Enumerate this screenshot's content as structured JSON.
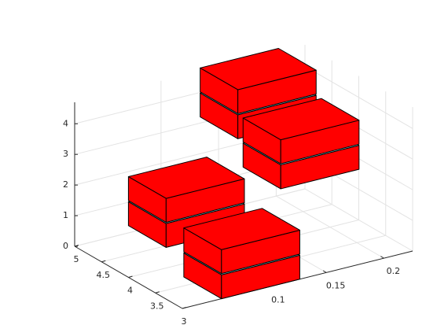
{
  "chart_data": {
    "type": "box3d",
    "color": "#ff0000",
    "xlim": [
      0.025,
      0.225
    ],
    "ylim": [
      3,
      5
    ],
    "zlim": [
      0,
      4.7
    ],
    "xticks": [
      0.1,
      0.15,
      0.2
    ],
    "yticks": [
      3,
      3.5,
      4,
      4.5,
      5
    ],
    "zticks": [
      0,
      1,
      2,
      3,
      4
    ],
    "grid": true,
    "boxes": [
      {
        "x": [
          0.134,
          0.202
        ],
        "y": [
          4.3,
          5.0
        ],
        "z": [
          [
            3.2,
            3.98
          ],
          [
            4.02,
            4.8
          ]
        ]
      },
      {
        "x": [
          0.146,
          0.214
        ],
        "y": [
          3.76,
          4.46
        ],
        "z": [
          [
            2.0,
            2.78
          ],
          [
            2.82,
            3.6
          ]
        ]
      },
      {
        "x": [
          0.06,
          0.128
        ],
        "y": [
          4.05,
          4.75
        ],
        "z": [
          [
            0.6,
            1.38
          ],
          [
            1.42,
            2.2
          ]
        ]
      },
      {
        "x": [
          0.059,
          0.127
        ],
        "y": [
          3.0,
          3.7
        ],
        "z": [
          [
            0,
            0.78
          ],
          [
            0.82,
            1.6
          ]
        ]
      }
    ]
  }
}
